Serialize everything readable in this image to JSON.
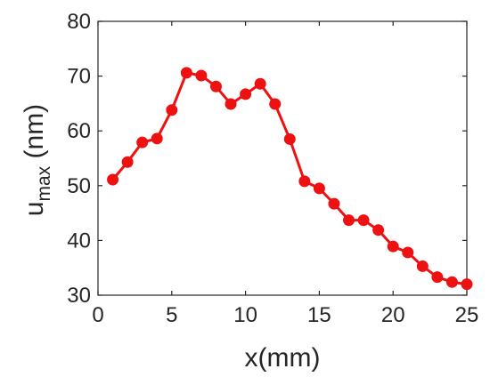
{
  "chart_data": {
    "type": "line",
    "xlabel": "x(mm)",
    "ylabel": {
      "base": "u",
      "subscript": "max",
      "unit": "(nm)"
    },
    "xlim": [
      0,
      25
    ],
    "ylim": [
      30,
      80
    ],
    "xticks": [
      0,
      5,
      10,
      15,
      20,
      25
    ],
    "yticks": [
      30,
      40,
      50,
      60,
      70,
      80
    ],
    "xtick_labels": [
      "0",
      "5",
      "10",
      "15",
      "20",
      "25"
    ],
    "ytick_labels": [
      "30",
      "40",
      "50",
      "60",
      "70",
      "80"
    ],
    "grid": false,
    "legend": "none",
    "series": [
      {
        "color": "#ee1111",
        "marker": "circle",
        "x": [
          1,
          2,
          3,
          4,
          5,
          6,
          7,
          8,
          9,
          10,
          11,
          12,
          13,
          14,
          15,
          16,
          17,
          18,
          19,
          20,
          21,
          22,
          23,
          24,
          25
        ],
        "y": [
          51.1,
          54.3,
          57.9,
          58.6,
          63.8,
          70.6,
          70.1,
          68.1,
          64.9,
          66.7,
          68.6,
          64.9,
          58.5,
          50.8,
          49.5,
          46.7,
          43.7,
          43.7,
          41.9,
          38.9,
          37.8,
          35.3,
          33.3,
          32.4,
          32.0
        ]
      }
    ]
  }
}
